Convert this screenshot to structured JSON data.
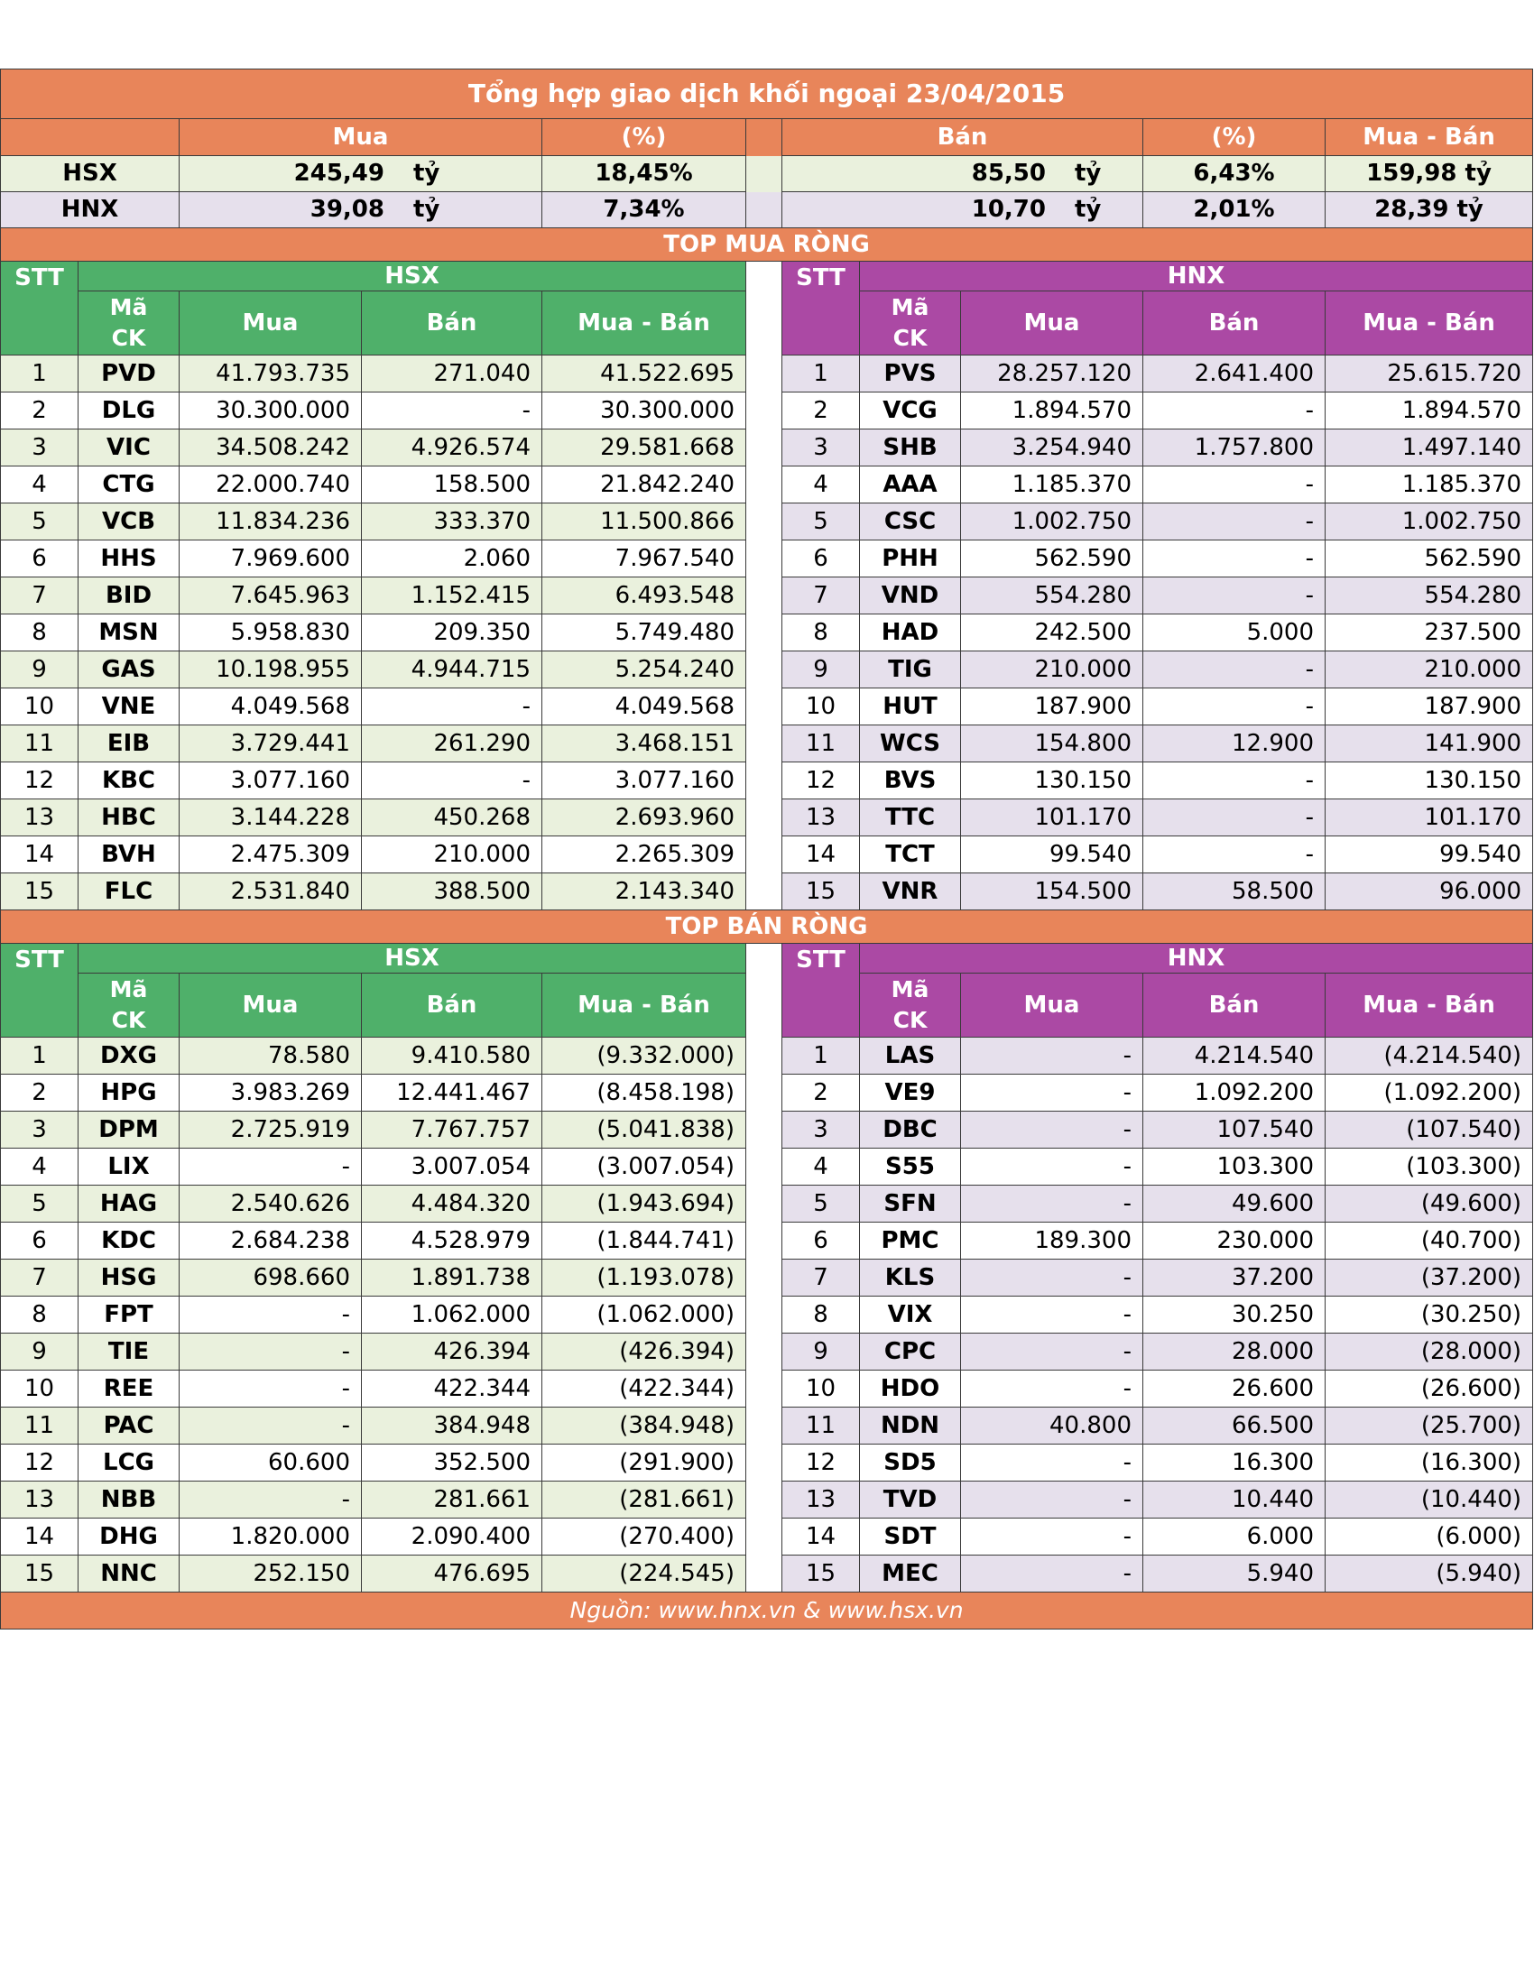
{
  "title": "Tổng hợp giao dịch khối ngoại 23/04/2015",
  "summary": {
    "headers": {
      "mua": "Mua",
      "pct1": "(%)",
      "ban": "Bán",
      "pct2": "(%)",
      "net": "Mua - Bán"
    },
    "unit": "tỷ",
    "rows": [
      {
        "exchange": "HSX",
        "mua": "245,49",
        "mua_pct": "18,45%",
        "ban": "85,50",
        "ban_pct": "6,43%",
        "net": "159,98 tỷ"
      },
      {
        "exchange": "HNX",
        "mua": "39,08",
        "mua_pct": "7,34%",
        "ban": "10,70",
        "ban_pct": "2,01%",
        "net": "28,39 tỷ"
      }
    ]
  },
  "columns": {
    "stt": "STT",
    "ma": "Mã",
    "ck": "CK",
    "mua": "Mua",
    "ban": "Bán",
    "net": "Mua - Bán",
    "hsx": "HSX",
    "hnx": "HNX"
  },
  "top_buy": {
    "title": "TOP MUA RÒNG",
    "rows": [
      {
        "stt": "1",
        "hsx": [
          "PVD",
          "41.793.735",
          "271.040",
          "41.522.695"
        ],
        "hnx": [
          "PVS",
          "28.257.120",
          "2.641.400",
          "25.615.720"
        ]
      },
      {
        "stt": "2",
        "hsx": [
          "DLG",
          "30.300.000",
          "-",
          "30.300.000"
        ],
        "hnx": [
          "VCG",
          "1.894.570",
          "-",
          "1.894.570"
        ]
      },
      {
        "stt": "3",
        "hsx": [
          "VIC",
          "34.508.242",
          "4.926.574",
          "29.581.668"
        ],
        "hnx": [
          "SHB",
          "3.254.940",
          "1.757.800",
          "1.497.140"
        ]
      },
      {
        "stt": "4",
        "hsx": [
          "CTG",
          "22.000.740",
          "158.500",
          "21.842.240"
        ],
        "hnx": [
          "AAA",
          "1.185.370",
          "-",
          "1.185.370"
        ]
      },
      {
        "stt": "5",
        "hsx": [
          "VCB",
          "11.834.236",
          "333.370",
          "11.500.866"
        ],
        "hnx": [
          "CSC",
          "1.002.750",
          "-",
          "1.002.750"
        ]
      },
      {
        "stt": "6",
        "hsx": [
          "HHS",
          "7.969.600",
          "2.060",
          "7.967.540"
        ],
        "hnx": [
          "PHH",
          "562.590",
          "-",
          "562.590"
        ]
      },
      {
        "stt": "7",
        "hsx": [
          "BID",
          "7.645.963",
          "1.152.415",
          "6.493.548"
        ],
        "hnx": [
          "VND",
          "554.280",
          "-",
          "554.280"
        ]
      },
      {
        "stt": "8",
        "hsx": [
          "MSN",
          "5.958.830",
          "209.350",
          "5.749.480"
        ],
        "hnx": [
          "HAD",
          "242.500",
          "5.000",
          "237.500"
        ]
      },
      {
        "stt": "9",
        "hsx": [
          "GAS",
          "10.198.955",
          "4.944.715",
          "5.254.240"
        ],
        "hnx": [
          "TIG",
          "210.000",
          "-",
          "210.000"
        ]
      },
      {
        "stt": "10",
        "hsx": [
          "VNE",
          "4.049.568",
          "-",
          "4.049.568"
        ],
        "hnx": [
          "HUT",
          "187.900",
          "-",
          "187.900"
        ]
      },
      {
        "stt": "11",
        "hsx": [
          "EIB",
          "3.729.441",
          "261.290",
          "3.468.151"
        ],
        "hnx": [
          "WCS",
          "154.800",
          "12.900",
          "141.900"
        ]
      },
      {
        "stt": "12",
        "hsx": [
          "KBC",
          "3.077.160",
          "-",
          "3.077.160"
        ],
        "hnx": [
          "BVS",
          "130.150",
          "-",
          "130.150"
        ]
      },
      {
        "stt": "13",
        "hsx": [
          "HBC",
          "3.144.228",
          "450.268",
          "2.693.960"
        ],
        "hnx": [
          "TTC",
          "101.170",
          "-",
          "101.170"
        ]
      },
      {
        "stt": "14",
        "hsx": [
          "BVH",
          "2.475.309",
          "210.000",
          "2.265.309"
        ],
        "hnx": [
          "TCT",
          "99.540",
          "-",
          "99.540"
        ]
      },
      {
        "stt": "15",
        "hsx": [
          "FLC",
          "2.531.840",
          "388.500",
          "2.143.340"
        ],
        "hnx": [
          "VNR",
          "154.500",
          "58.500",
          "96.000"
        ]
      }
    ]
  },
  "top_sell": {
    "title": "TOP BÁN RÒNG",
    "rows": [
      {
        "stt": "1",
        "hsx": [
          "DXG",
          "78.580",
          "9.410.580",
          "(9.332.000)"
        ],
        "hnx": [
          "LAS",
          "-",
          "4.214.540",
          "(4.214.540)"
        ]
      },
      {
        "stt": "2",
        "hsx": [
          "HPG",
          "3.983.269",
          "12.441.467",
          "(8.458.198)"
        ],
        "hnx": [
          "VE9",
          "-",
          "1.092.200",
          "(1.092.200)"
        ]
      },
      {
        "stt": "3",
        "hsx": [
          "DPM",
          "2.725.919",
          "7.767.757",
          "(5.041.838)"
        ],
        "hnx": [
          "DBC",
          "-",
          "107.540",
          "(107.540)"
        ]
      },
      {
        "stt": "4",
        "hsx": [
          "LIX",
          "-",
          "3.007.054",
          "(3.007.054)"
        ],
        "hnx": [
          "S55",
          "-",
          "103.300",
          "(103.300)"
        ]
      },
      {
        "stt": "5",
        "hsx": [
          "HAG",
          "2.540.626",
          "4.484.320",
          "(1.943.694)"
        ],
        "hnx": [
          "SFN",
          "-",
          "49.600",
          "(49.600)"
        ]
      },
      {
        "stt": "6",
        "hsx": [
          "KDC",
          "2.684.238",
          "4.528.979",
          "(1.844.741)"
        ],
        "hnx": [
          "PMC",
          "189.300",
          "230.000",
          "(40.700)"
        ]
      },
      {
        "stt": "7",
        "hsx": [
          "HSG",
          "698.660",
          "1.891.738",
          "(1.193.078)"
        ],
        "hnx": [
          "KLS",
          "-",
          "37.200",
          "(37.200)"
        ]
      },
      {
        "stt": "8",
        "hsx": [
          "FPT",
          "-",
          "1.062.000",
          "(1.062.000)"
        ],
        "hnx": [
          "VIX",
          "-",
          "30.250",
          "(30.250)"
        ]
      },
      {
        "stt": "9",
        "hsx": [
          "TIE",
          "-",
          "426.394",
          "(426.394)"
        ],
        "hnx": [
          "CPC",
          "-",
          "28.000",
          "(28.000)"
        ]
      },
      {
        "stt": "10",
        "hsx": [
          "REE",
          "-",
          "422.344",
          "(422.344)"
        ],
        "hnx": [
          "HDO",
          "-",
          "26.600",
          "(26.600)"
        ]
      },
      {
        "stt": "11",
        "hsx": [
          "PAC",
          "-",
          "384.948",
          "(384.948)"
        ],
        "hnx": [
          "NDN",
          "40.800",
          "66.500",
          "(25.700)"
        ]
      },
      {
        "stt": "12",
        "hsx": [
          "LCG",
          "60.600",
          "352.500",
          "(291.900)"
        ],
        "hnx": [
          "SD5",
          "-",
          "16.300",
          "(16.300)"
        ]
      },
      {
        "stt": "13",
        "hsx": [
          "NBB",
          "-",
          "281.661",
          "(281.661)"
        ],
        "hnx": [
          "TVD",
          "-",
          "10.440",
          "(10.440)"
        ]
      },
      {
        "stt": "14",
        "hsx": [
          "DHG",
          "1.820.000",
          "2.090.400",
          "(270.400)"
        ],
        "hnx": [
          "SDT",
          "-",
          "6.000",
          "(6.000)"
        ]
      },
      {
        "stt": "15",
        "hsx": [
          "NNC",
          "252.150",
          "476.695",
          "(224.545)"
        ],
        "hnx": [
          "MEC",
          "-",
          "5.940",
          "(5.940)"
        ]
      }
    ]
  },
  "source": "Nguồn: www.hnx.vn    &    www.hsx.vn"
}
